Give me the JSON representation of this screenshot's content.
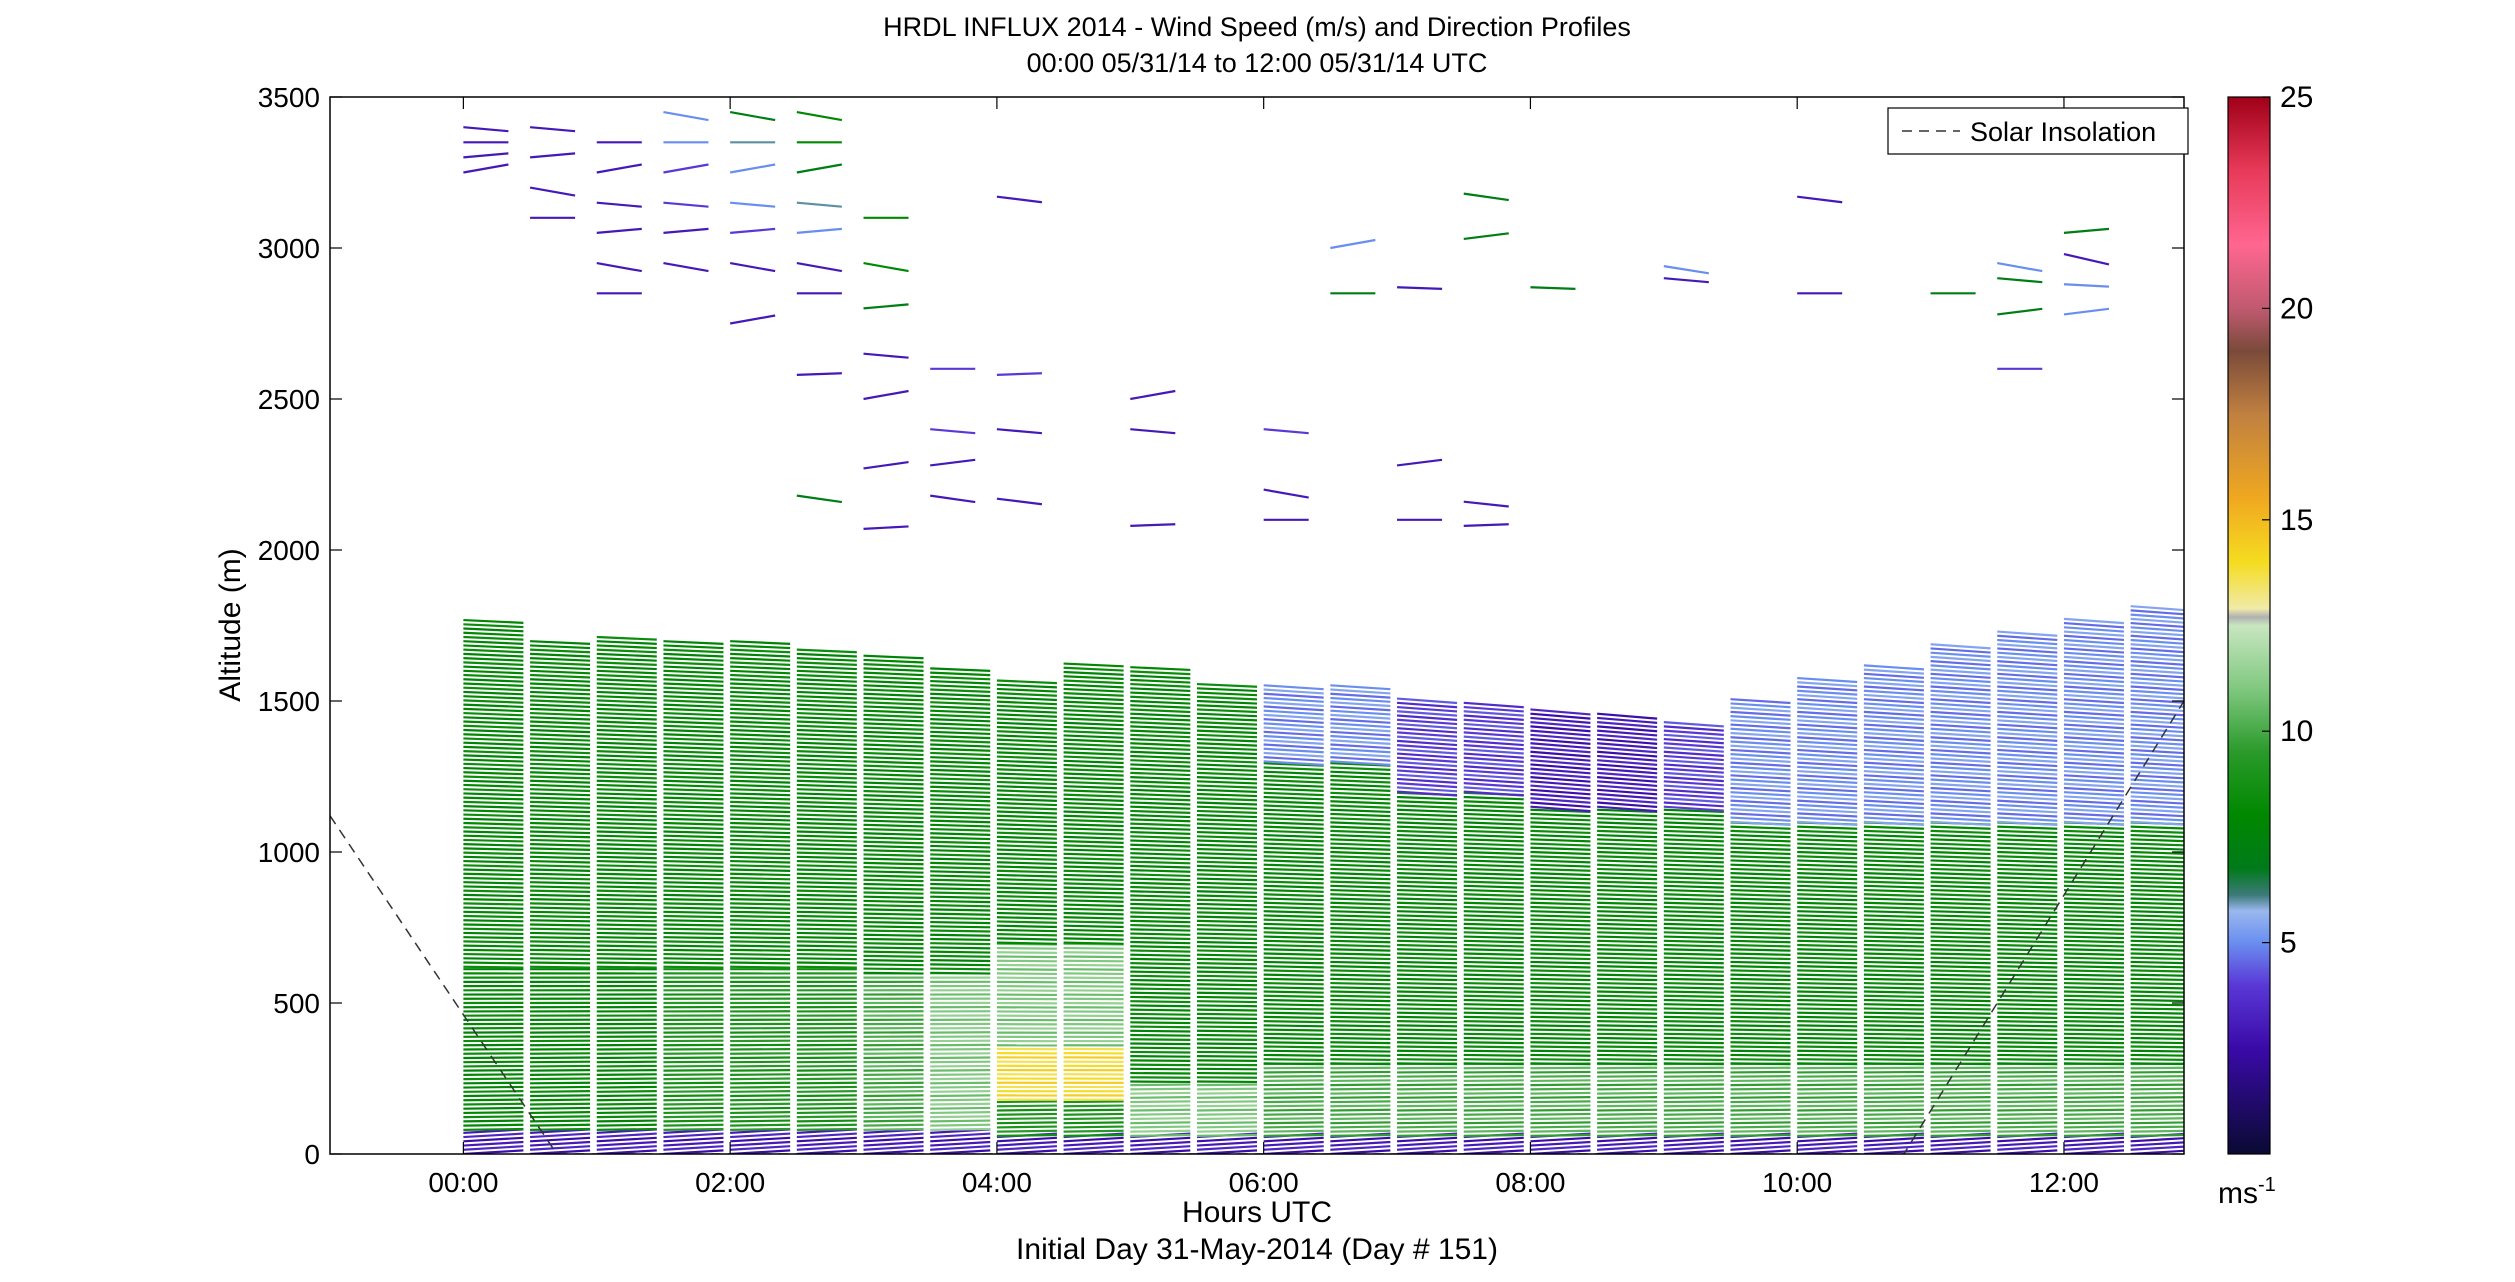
{
  "chart_data": {
    "type": "wind-barb-profile",
    "title": "HRDL INFLUX 2014 - Wind Speed (m/s) and Direction Profiles",
    "subtitle": "00:00 05/31/14 to 12:00 05/31/14  UTC",
    "xlabel": "Hours UTC",
    "xlabel2": "Initial Day 31-May-2014 (Day # 151)",
    "ylabel": "Altitude (m)",
    "xlim": [
      -1.0,
      12.9
    ],
    "ylim": [
      0,
      3500
    ],
    "x_ticks": [
      0,
      2,
      4,
      6,
      8,
      10,
      12
    ],
    "x_tick_labels": [
      "00:00",
      "02:00",
      "04:00",
      "06:00",
      "08:00",
      "10:00",
      "12:00"
    ],
    "y_ticks": [
      0,
      500,
      1000,
      1500,
      2000,
      2500,
      3000,
      3500
    ],
    "y_tick_labels": [
      "0",
      "500",
      "1000",
      "1500",
      "2000",
      "2500",
      "3000",
      "3500"
    ],
    "legend": {
      "entries": [
        "Solar Insolation"
      ],
      "placement": "top-right",
      "style": "dashed"
    },
    "colorbar": {
      "label": "ms",
      "label_sup": "-1",
      "range": [
        0,
        25
      ],
      "ticks": [
        5,
        10,
        15,
        20,
        25
      ],
      "tick_labels": [
        "5",
        "10",
        "15",
        "20",
        "25"
      ],
      "colors": [
        [
          0.0,
          "#0a0a33"
        ],
        [
          0.1,
          "#3a0aa8"
        ],
        [
          0.16,
          "#5a38d6"
        ],
        [
          0.2,
          "#6a8ef0"
        ],
        [
          0.23,
          "#9ab8ee"
        ],
        [
          0.245,
          "#3d7a7a"
        ],
        [
          0.27,
          "#007a1a"
        ],
        [
          0.32,
          "#008800"
        ],
        [
          0.38,
          "#2a9a2a"
        ],
        [
          0.44,
          "#80c880"
        ],
        [
          0.5,
          "#c8e6c0"
        ],
        [
          0.508,
          "#b0b0b0"
        ],
        [
          0.516,
          "#f0eaa8"
        ],
        [
          0.56,
          "#f5dc20"
        ],
        [
          0.62,
          "#f0a820"
        ],
        [
          0.7,
          "#c08040"
        ],
        [
          0.76,
          "#7a4a3a"
        ],
        [
          0.8,
          "#c05a70"
        ],
        [
          0.86,
          "#ff6690"
        ],
        [
          0.93,
          "#e83a5a"
        ],
        [
          1.0,
          "#a00018"
        ]
      ]
    },
    "profile_times_hours": [
      0.0,
      0.5,
      1.0,
      1.5,
      2.0,
      2.5,
      3.0,
      3.5,
      4.0,
      4.5,
      5.0,
      5.5,
      6.0,
      6.5,
      7.0,
      7.5,
      8.0,
      8.5,
      9.0,
      9.5,
      10.0,
      10.5,
      11.0,
      11.5,
      12.0,
      12.5
    ],
    "boundary_layer_top_m": [
      1780,
      1700,
      1720,
      1700,
      1700,
      1680,
      1660,
      1620,
      1580,
      1630,
      1620,
      1560,
      1560,
      1560,
      1520,
      1500,
      1480,
      1460,
      1440,
      1520,
      1580,
      1620,
      1700,
      1740,
      1780,
      1820
    ],
    "profiles": [
      {
        "t": 0.0,
        "bands": [
          [
            0,
            80,
            3,
            240
          ],
          [
            80,
            620,
            8,
            262
          ],
          [
            620,
            1780,
            8,
            268
          ]
        ]
      },
      {
        "t": 0.5,
        "bands": [
          [
            0,
            80,
            3,
            240
          ],
          [
            80,
            620,
            8,
            262
          ],
          [
            620,
            1700,
            8,
            268
          ]
        ]
      },
      {
        "t": 1.0,
        "bands": [
          [
            0,
            80,
            3,
            240
          ],
          [
            80,
            620,
            8,
            262
          ],
          [
            620,
            1720,
            8,
            268
          ]
        ]
      },
      {
        "t": 1.5,
        "bands": [
          [
            0,
            80,
            3,
            240
          ],
          [
            80,
            620,
            9,
            262
          ],
          [
            620,
            1700,
            8,
            268
          ]
        ]
      },
      {
        "t": 2.0,
        "bands": [
          [
            0,
            80,
            3,
            240
          ],
          [
            80,
            620,
            9,
            262
          ],
          [
            620,
            1700,
            8,
            268
          ]
        ]
      },
      {
        "t": 2.5,
        "bands": [
          [
            0,
            80,
            3,
            240
          ],
          [
            80,
            620,
            9,
            262
          ],
          [
            620,
            1680,
            8,
            268
          ]
        ]
      },
      {
        "t": 3.0,
        "bands": [
          [
            0,
            80,
            3,
            240
          ],
          [
            80,
            600,
            10,
            262
          ],
          [
            600,
            1660,
            8,
            268
          ]
        ]
      },
      {
        "t": 3.5,
        "bands": [
          [
            0,
            80,
            3,
            240
          ],
          [
            80,
            600,
            11,
            262
          ],
          [
            600,
            1620,
            8,
            268
          ]
        ]
      },
      {
        "t": 4.0,
        "bands": [
          [
            0,
            60,
            3,
            240
          ],
          [
            60,
            180,
            9,
            262
          ],
          [
            180,
            360,
            14,
            268
          ],
          [
            360,
            700,
            11,
            266
          ],
          [
            700,
            1580,
            8,
            270
          ]
        ]
      },
      {
        "t": 4.5,
        "bands": [
          [
            0,
            60,
            3,
            240
          ],
          [
            60,
            180,
            9,
            262
          ],
          [
            180,
            360,
            14,
            268
          ],
          [
            360,
            700,
            11,
            266
          ],
          [
            700,
            1630,
            8,
            270
          ]
        ]
      },
      {
        "t": 5.0,
        "bands": [
          [
            0,
            60,
            3,
            240
          ],
          [
            60,
            240,
            11,
            262
          ],
          [
            240,
            1620,
            8,
            270
          ]
        ]
      },
      {
        "t": 5.5,
        "bands": [
          [
            0,
            60,
            3,
            240
          ],
          [
            60,
            240,
            11,
            262
          ],
          [
            240,
            1560,
            8,
            270
          ]
        ]
      },
      {
        "t": 6.0,
        "bands": [
          [
            0,
            60,
            3,
            240
          ],
          [
            60,
            300,
            10,
            262
          ],
          [
            300,
            1300,
            8,
            272
          ],
          [
            1300,
            1560,
            5,
            280
          ]
        ]
      },
      {
        "t": 6.5,
        "bands": [
          [
            0,
            60,
            3,
            240
          ],
          [
            60,
            300,
            10,
            262
          ],
          [
            300,
            1300,
            8,
            272
          ],
          [
            1300,
            1560,
            5,
            280
          ]
        ]
      },
      {
        "t": 7.0,
        "bands": [
          [
            0,
            60,
            3,
            240
          ],
          [
            60,
            300,
            10,
            262
          ],
          [
            300,
            1200,
            8,
            272
          ],
          [
            1200,
            1520,
            4,
            285
          ]
        ]
      },
      {
        "t": 7.5,
        "bands": [
          [
            0,
            60,
            3,
            240
          ],
          [
            60,
            300,
            10,
            262
          ],
          [
            300,
            1200,
            8,
            272
          ],
          [
            1200,
            1500,
            4,
            285
          ]
        ]
      },
      {
        "t": 8.0,
        "bands": [
          [
            0,
            60,
            3,
            240
          ],
          [
            60,
            300,
            10,
            262
          ],
          [
            300,
            1150,
            8,
            272
          ],
          [
            1150,
            1480,
            3,
            290
          ]
        ]
      },
      {
        "t": 8.5,
        "bands": [
          [
            0,
            60,
            3,
            240
          ],
          [
            60,
            300,
            10,
            262
          ],
          [
            300,
            1150,
            8,
            272
          ],
          [
            1150,
            1460,
            3,
            290
          ]
        ]
      },
      {
        "t": 9.0,
        "bands": [
          [
            0,
            60,
            3,
            240
          ],
          [
            60,
            300,
            10,
            262
          ],
          [
            300,
            1150,
            8,
            272
          ],
          [
            1150,
            1440,
            4,
            285
          ]
        ]
      },
      {
        "t": 9.5,
        "bands": [
          [
            0,
            60,
            3,
            240
          ],
          [
            60,
            300,
            10,
            262
          ],
          [
            300,
            1100,
            8,
            272
          ],
          [
            1100,
            1520,
            5,
            280
          ]
        ]
      },
      {
        "t": 10.0,
        "bands": [
          [
            0,
            60,
            3,
            240
          ],
          [
            60,
            300,
            10,
            262
          ],
          [
            300,
            1100,
            8,
            272
          ],
          [
            1100,
            1580,
            5,
            280
          ]
        ]
      },
      {
        "t": 10.5,
        "bands": [
          [
            0,
            60,
            3,
            240
          ],
          [
            60,
            300,
            10,
            262
          ],
          [
            300,
            1100,
            8,
            272
          ],
          [
            1100,
            1620,
            5,
            280
          ]
        ]
      },
      {
        "t": 11.0,
        "bands": [
          [
            0,
            60,
            3,
            240
          ],
          [
            60,
            300,
            10,
            262
          ],
          [
            300,
            1100,
            8,
            272
          ],
          [
            1100,
            1700,
            5,
            280
          ]
        ]
      },
      {
        "t": 11.5,
        "bands": [
          [
            0,
            60,
            3,
            240
          ],
          [
            60,
            300,
            10,
            262
          ],
          [
            300,
            1100,
            8,
            272
          ],
          [
            1100,
            1740,
            5,
            280
          ]
        ]
      },
      {
        "t": 12.0,
        "bands": [
          [
            0,
            60,
            3,
            240
          ],
          [
            60,
            300,
            10,
            262
          ],
          [
            300,
            1100,
            8,
            272
          ],
          [
            1100,
            1780,
            5,
            280
          ]
        ]
      },
      {
        "t": 12.5,
        "bands": [
          [
            0,
            60,
            3,
            240
          ],
          [
            60,
            300,
            10,
            262
          ],
          [
            300,
            1100,
            8,
            272
          ],
          [
            1100,
            1820,
            5,
            280
          ]
        ]
      }
    ],
    "upper_profiles": [
      {
        "t": 0.0,
        "alt": [
          3250,
          3300,
          3350,
          3400
        ],
        "speed": [
          3,
          3,
          3,
          3
        ]
      },
      {
        "t": 0.5,
        "alt": [
          3100,
          3200,
          3300,
          3400
        ],
        "speed": [
          3,
          3,
          3,
          3
        ]
      },
      {
        "t": 1.0,
        "alt": [
          2850,
          2950,
          3050,
          3150,
          3250,
          3350
        ],
        "speed": [
          3,
          3,
          3,
          3,
          3,
          3
        ]
      },
      {
        "t": 1.5,
        "alt": [
          2950,
          3050,
          3150,
          3250,
          3350,
          3450
        ],
        "speed": [
          3,
          3,
          4,
          4,
          5,
          5
        ]
      },
      {
        "t": 2.0,
        "alt": [
          2750,
          2950,
          3050,
          3150,
          3250,
          3350,
          3450
        ],
        "speed": [
          3,
          3,
          4,
          5,
          5,
          6,
          7
        ]
      },
      {
        "t": 2.5,
        "alt": [
          2180,
          2580,
          2850,
          2950,
          3050,
          3150,
          3250,
          3350,
          3450
        ],
        "speed": [
          7,
          3,
          3,
          3,
          5,
          6,
          7,
          8,
          8
        ]
      },
      {
        "t": 3.0,
        "alt": [
          2070,
          2270,
          2500,
          2650,
          2800,
          2950,
          3100
        ],
        "speed": [
          3,
          3,
          3,
          3,
          7,
          8,
          8
        ]
      },
      {
        "t": 3.5,
        "alt": [
          2180,
          2280,
          2400,
          2600
        ],
        "speed": [
          3,
          3,
          4,
          4
        ]
      },
      {
        "t": 4.0,
        "alt": [
          2170,
          2400,
          2580,
          3170
        ],
        "speed": [
          3,
          3,
          4,
          3
        ]
      },
      {
        "t": 5.0,
        "alt": [
          2080,
          2400,
          2500
        ],
        "speed": [
          3,
          3,
          3
        ]
      },
      {
        "t": 6.0,
        "alt": [
          2100,
          2200,
          2400
        ],
        "speed": [
          3,
          3,
          4
        ]
      },
      {
        "t": 6.5,
        "alt": [
          2850,
          3000
        ],
        "speed": [
          7,
          5
        ]
      },
      {
        "t": 7.0,
        "alt": [
          2100,
          2280,
          2870
        ],
        "speed": [
          3,
          3,
          3
        ]
      },
      {
        "t": 7.5,
        "alt": [
          2080,
          2160,
          3030,
          3180
        ],
        "speed": [
          3,
          3,
          7,
          7
        ]
      },
      {
        "t": 8.0,
        "alt": [
          2870
        ],
        "speed": [
          7
        ]
      },
      {
        "t": 9.0,
        "alt": [
          2900,
          2940
        ],
        "speed": [
          3,
          5
        ]
      },
      {
        "t": 10.0,
        "alt": [
          2850,
          3170
        ],
        "speed": [
          3,
          3
        ]
      },
      {
        "t": 11.0,
        "alt": [
          2850
        ],
        "speed": [
          7
        ]
      },
      {
        "t": 11.5,
        "alt": [
          2600,
          2780,
          2900,
          2950
        ],
        "speed": [
          4,
          7,
          7,
          5
        ]
      },
      {
        "t": 12.0,
        "alt": [
          2780,
          2880,
          2980,
          3050
        ],
        "speed": [
          5,
          5,
          3,
          7
        ]
      }
    ],
    "solar_insolation": {
      "x": [
        -1.0,
        0.7,
        10.8,
        12.9
      ],
      "y": [
        1120,
        0,
        0,
        1500
      ]
    }
  }
}
